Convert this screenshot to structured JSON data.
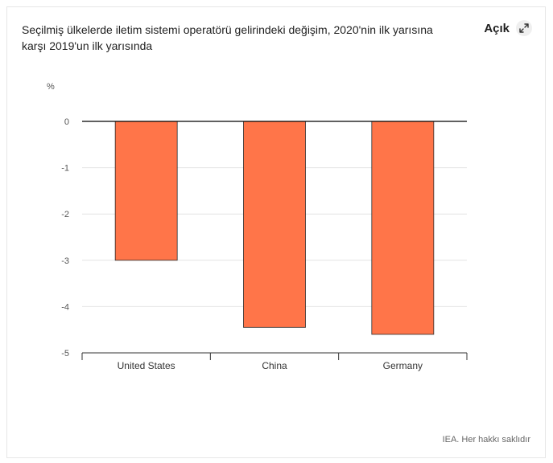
{
  "header": {
    "title": "Seçilmiş ülkelerde iletim sistemi operatörü gelirindeki değişim, 2020'nin ilk yarısına karşı 2019'un ilk yarısında",
    "expand_label": "Açık",
    "expand_icon": "expand-arrows-icon"
  },
  "footer": {
    "source": "IEA. Her hakkı saklıdır"
  },
  "colors": {
    "bar": "#ff7549",
    "bar_stroke": "#2a2a2a",
    "grid": "#e4e4e4",
    "axis": "#000000"
  },
  "chart_data": {
    "type": "bar",
    "title": "Seçilmiş ülkelerde iletim sistemi operatörü gelirindeki değişim, 2020'nin ilk yarısına karşı 2019'un ilk yarısında",
    "xlabel": "",
    "ylabel": "%",
    "categories": [
      "United States",
      "China",
      "Germany"
    ],
    "values": [
      -3,
      -4.45,
      -4.6
    ],
    "ylim": [
      -5,
      0
    ],
    "yticks": [
      "0",
      "-1",
      "-2",
      "-3",
      "-4",
      "-5"
    ],
    "grid": true,
    "legend": "none"
  }
}
